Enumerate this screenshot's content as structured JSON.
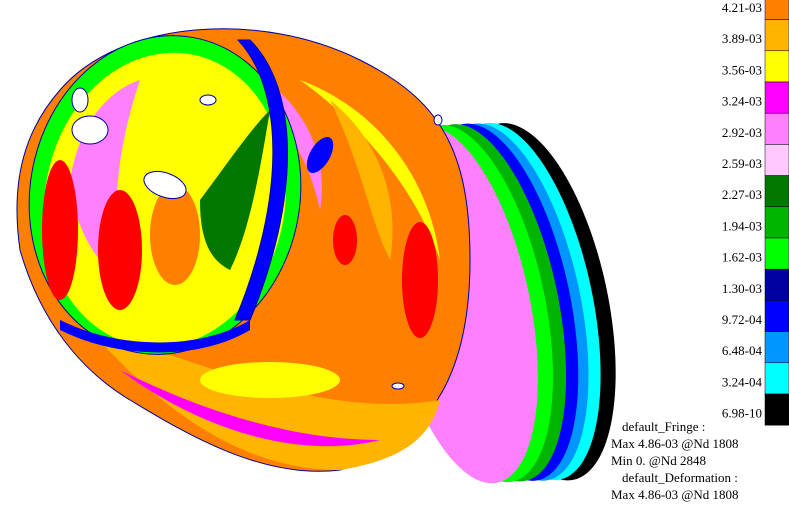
{
  "legend": {
    "items": [
      {
        "label": "4.21-03",
        "color": "#ff8000"
      },
      {
        "label": "3.89-03",
        "color": "#ffb400"
      },
      {
        "label": "3.56-03",
        "color": "#ffff00"
      },
      {
        "label": "3.24-03",
        "color": "#ff00ff"
      },
      {
        "label": "2.92-03",
        "color": "#ff80ff"
      },
      {
        "label": "2.59-03",
        "color": "#ffc8ff"
      },
      {
        "label": "2.27-03",
        "color": "#007800"
      },
      {
        "label": "1.94-03",
        "color": "#00b400"
      },
      {
        "label": "1.62-03",
        "color": "#00ff00"
      },
      {
        "label": "1.30-03",
        "color": "#0000a0"
      },
      {
        "label": "9.72-04",
        "color": "#0000ff"
      },
      {
        "label": "6.48-04",
        "color": "#0096ff"
      },
      {
        "label": "3.24-04",
        "color": "#00ffff"
      },
      {
        "label": "6.98-10",
        "color": "#000000"
      }
    ]
  },
  "info": {
    "lines": [
      "default_Fringe :",
      "Max 4.86-03 @Nd 1808",
      "Min 0. @Nd 2848",
      "default_Deformation :",
      "Max 4.86-03 @Nd 1808"
    ]
  }
}
